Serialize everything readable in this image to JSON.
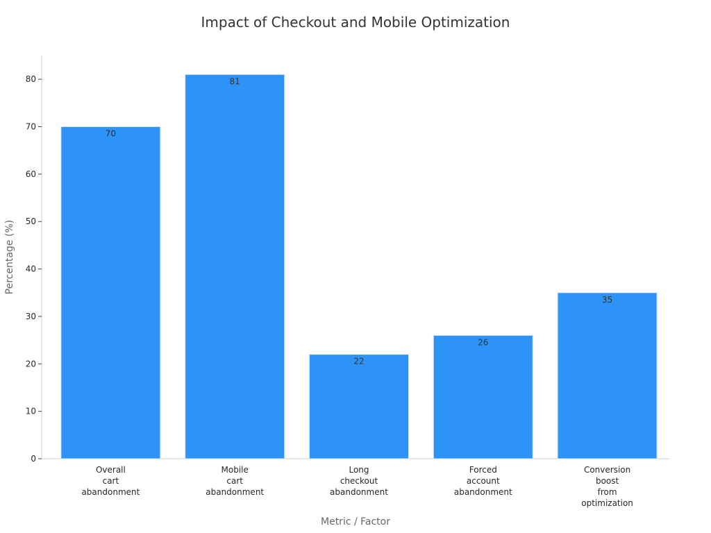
{
  "chart_data": {
    "type": "bar",
    "title": "Impact of Checkout and Mobile Optimization",
    "xlabel": "Metric / Factor",
    "ylabel": "Percentage (%)",
    "ylim": [
      0,
      85
    ],
    "yticks": [
      "0",
      "10",
      "20",
      "30",
      "40",
      "50",
      "60",
      "70",
      "80"
    ],
    "categories": [
      "Overall cart abandonment",
      "Mobile cart abandonment",
      "Long checkout abandonment",
      "Forced account abandonment",
      "Conversion boost from optimization"
    ],
    "category_lines": [
      [
        "Overall",
        "cart",
        "abandonment"
      ],
      [
        "Mobile",
        "cart",
        "abandonment"
      ],
      [
        "Long",
        "checkout",
        "abandonment"
      ],
      [
        "Forced",
        "account",
        "abandonment"
      ],
      [
        "Conversion",
        "boost",
        "from",
        "optimization"
      ]
    ],
    "values": [
      70,
      81,
      22,
      26,
      35
    ],
    "data_labels": [
      "70",
      "81",
      "22",
      "26",
      "35"
    ],
    "grid": false,
    "bar_color": "#2e93f7",
    "bar_edge_color": "#d9e8f7"
  }
}
